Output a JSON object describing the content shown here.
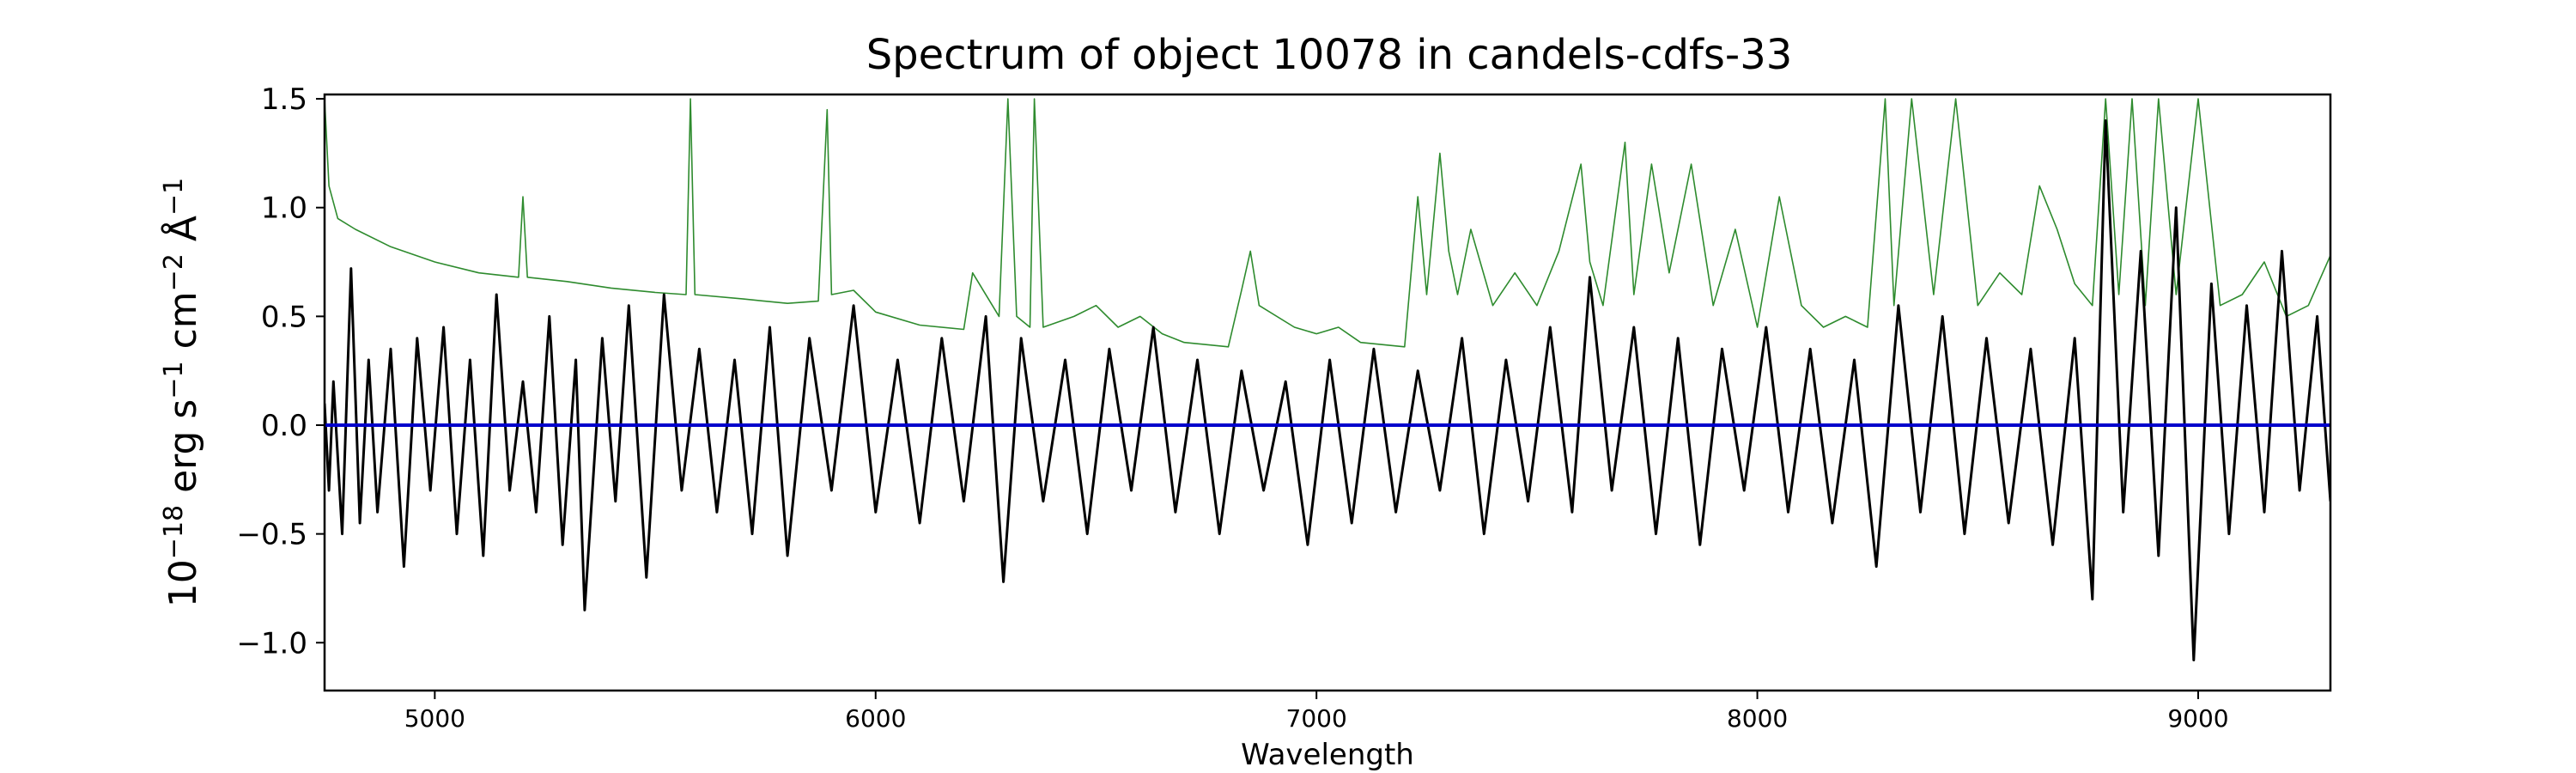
{
  "chart_data": {
    "type": "line",
    "title": "Spectrum of object 10078 in candels-cdfs-33",
    "xlabel": "Wavelength",
    "ylabel": {
      "parts": [
        {
          "text": "10",
          "sup": false
        },
        {
          "text": "−18",
          "sup": true
        },
        {
          "text": " erg s",
          "sup": false
        },
        {
          "text": "−1",
          "sup": true
        },
        {
          "text": " cm",
          "sup": false
        },
        {
          "text": "−2",
          "sup": true
        },
        {
          "text": " Å",
          "sup": false
        },
        {
          "text": "−1",
          "sup": true
        }
      ]
    },
    "xlim": [
      4750,
      9300
    ],
    "ylim": [
      -1.22,
      1.52
    ],
    "xticks": [
      5000,
      6000,
      7000,
      8000,
      9000
    ],
    "xtick_labels": [
      "5000",
      "6000",
      "7000",
      "8000",
      "9000"
    ],
    "yticks": [
      -1.0,
      -0.5,
      0.0,
      0.5,
      1.0,
      1.5
    ],
    "ytick_labels": [
      "−1.0",
      "−0.5",
      "0.0",
      "0.5",
      "1.0",
      "1.5"
    ],
    "grid": false,
    "colors": {
      "flux": "#000000",
      "error": "#2e8b2e",
      "zero": "#0000cc"
    },
    "series": [
      {
        "role": "flux",
        "color": "#000000",
        "x": [
          4750,
          4760,
          4770,
          4790,
          4810,
          4830,
          4850,
          4870,
          4900,
          4930,
          4960,
          4990,
          5020,
          5050,
          5080,
          5110,
          5140,
          5170,
          5200,
          5230,
          5260,
          5290,
          5320,
          5340,
          5380,
          5410,
          5440,
          5480,
          5520,
          5560,
          5600,
          5640,
          5680,
          5720,
          5760,
          5800,
          5850,
          5900,
          5950,
          6000,
          6050,
          6100,
          6150,
          6200,
          6250,
          6290,
          6330,
          6380,
          6430,
          6480,
          6530,
          6580,
          6630,
          6680,
          6730,
          6780,
          6830,
          6880,
          6930,
          6980,
          7030,
          7080,
          7130,
          7180,
          7230,
          7280,
          7330,
          7380,
          7430,
          7480,
          7530,
          7580,
          7620,
          7670,
          7720,
          7770,
          7820,
          7870,
          7920,
          7970,
          8020,
          8070,
          8120,
          8170,
          8220,
          8270,
          8320,
          8370,
          8420,
          8470,
          8520,
          8570,
          8620,
          8670,
          8720,
          8760,
          8790,
          8830,
          8870,
          8910,
          8950,
          8990,
          9030,
          9070,
          9110,
          9150,
          9190,
          9230,
          9270,
          9300
        ],
        "y": [
          0.1,
          -0.3,
          0.2,
          -0.5,
          0.72,
          -0.45,
          0.3,
          -0.4,
          0.35,
          -0.65,
          0.4,
          -0.3,
          0.45,
          -0.5,
          0.3,
          -0.6,
          0.6,
          -0.3,
          0.2,
          -0.4,
          0.5,
          -0.55,
          0.3,
          -0.85,
          0.4,
          -0.35,
          0.55,
          -0.7,
          0.6,
          -0.3,
          0.35,
          -0.4,
          0.3,
          -0.5,
          0.45,
          -0.6,
          0.4,
          -0.3,
          0.55,
          -0.4,
          0.3,
          -0.45,
          0.4,
          -0.35,
          0.5,
          -0.72,
          0.4,
          -0.35,
          0.3,
          -0.5,
          0.35,
          -0.3,
          0.45,
          -0.4,
          0.3,
          -0.5,
          0.25,
          -0.3,
          0.2,
          -0.55,
          0.3,
          -0.45,
          0.35,
          -0.4,
          0.25,
          -0.3,
          0.4,
          -0.5,
          0.3,
          -0.35,
          0.45,
          -0.4,
          0.68,
          -0.3,
          0.45,
          -0.5,
          0.4,
          -0.55,
          0.35,
          -0.3,
          0.45,
          -0.4,
          0.35,
          -0.45,
          0.3,
          -0.65,
          0.55,
          -0.4,
          0.5,
          -0.5,
          0.4,
          -0.45,
          0.35,
          -0.55,
          0.4,
          -0.8,
          1.4,
          -0.4,
          0.8,
          -0.6,
          1.0,
          -1.08,
          0.65,
          -0.5,
          0.55,
          -0.4,
          0.8,
          -0.3,
          0.5,
          -0.35
        ]
      },
      {
        "role": "error",
        "color": "#2e8b2e",
        "x": [
          4750,
          4760,
          4780,
          4820,
          4900,
          5000,
          5100,
          5190,
          5200,
          5210,
          5300,
          5400,
          5500,
          5570,
          5580,
          5590,
          5700,
          5800,
          5870,
          5890,
          5900,
          5950,
          6000,
          6100,
          6200,
          6220,
          6280,
          6300,
          6320,
          6350,
          6360,
          6380,
          6450,
          6500,
          6550,
          6600,
          6650,
          6700,
          6800,
          6830,
          6850,
          6870,
          6950,
          7000,
          7050,
          7100,
          7200,
          7230,
          7250,
          7280,
          7300,
          7320,
          7350,
          7400,
          7450,
          7500,
          7550,
          7600,
          7620,
          7650,
          7700,
          7720,
          7760,
          7800,
          7850,
          7900,
          7950,
          8000,
          8050,
          8100,
          8150,
          8200,
          8250,
          8290,
          8310,
          8350,
          8400,
          8450,
          8500,
          8550,
          8600,
          8640,
          8680,
          8720,
          8760,
          8790,
          8820,
          8850,
          8880,
          8910,
          8950,
          9000,
          9050,
          9100,
          9150,
          9200,
          9250,
          9300
        ],
        "y": [
          1.5,
          1.1,
          0.95,
          0.9,
          0.82,
          0.75,
          0.7,
          0.68,
          1.05,
          0.68,
          0.66,
          0.63,
          0.61,
          0.6,
          1.5,
          0.6,
          0.58,
          0.56,
          0.57,
          1.45,
          0.6,
          0.62,
          0.52,
          0.46,
          0.44,
          0.7,
          0.5,
          1.5,
          0.5,
          0.45,
          1.5,
          0.45,
          0.5,
          0.55,
          0.45,
          0.5,
          0.42,
          0.38,
          0.36,
          0.62,
          0.8,
          0.55,
          0.45,
          0.42,
          0.45,
          0.38,
          0.36,
          1.05,
          0.6,
          1.25,
          0.8,
          0.6,
          0.9,
          0.55,
          0.7,
          0.55,
          0.8,
          1.2,
          0.75,
          0.55,
          1.3,
          0.6,
          1.2,
          0.7,
          1.2,
          0.55,
          0.9,
          0.45,
          1.05,
          0.55,
          0.45,
          0.5,
          0.45,
          1.5,
          0.55,
          1.5,
          0.6,
          1.5,
          0.55,
          0.7,
          0.6,
          1.1,
          0.9,
          0.65,
          0.55,
          1.5,
          0.6,
          1.5,
          0.55,
          1.5,
          0.6,
          1.5,
          0.55,
          0.6,
          0.75,
          0.5,
          0.55,
          0.78
        ]
      },
      {
        "role": "zero",
        "color": "#0000cc",
        "x": [
          4750,
          9300
        ],
        "y": [
          0.0,
          0.0
        ]
      }
    ]
  }
}
